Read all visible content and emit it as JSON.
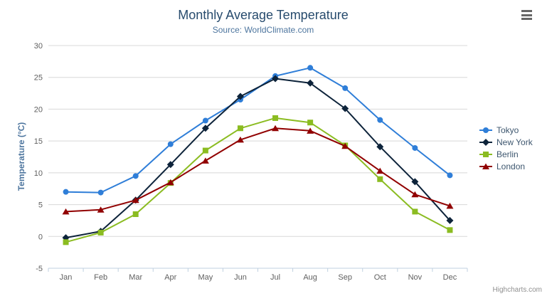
{
  "chart": {
    "title": "Monthly Average Temperature",
    "subtitle": "Source: WorldClimate.com",
    "credit": "Highcharts.com",
    "context_menu_icon": "hamburger-icon"
  },
  "colors": {
    "title_text": "#274b6d",
    "subtitle_text": "#4d759e",
    "axis_title_text": "#4d759e",
    "axis_label": "#606060",
    "grid_line": "#d8d8d8",
    "axis_line": "#c0d0e0",
    "legend_text": "#3e576f",
    "credit_text": "#909090",
    "menu_icon": "#666666"
  },
  "chart_data": {
    "type": "line",
    "title": "Monthly Average Temperature",
    "subtitle": "Source: WorldClimate.com",
    "xlabel": "",
    "ylabel": "Temperature (°C)",
    "ylim": [
      -5,
      30
    ],
    "yticks": [
      30,
      25,
      20,
      15,
      10,
      5,
      0,
      -5
    ],
    "grid": true,
    "legend_position": "right",
    "categories": [
      "Jan",
      "Feb",
      "Mar",
      "Apr",
      "May",
      "Jun",
      "Jul",
      "Aug",
      "Sep",
      "Oct",
      "Nov",
      "Dec"
    ],
    "series": [
      {
        "name": "Tokyo",
        "color": "#2f7ed8",
        "marker": "circle",
        "values": [
          7.0,
          6.9,
          9.5,
          14.5,
          18.2,
          21.5,
          25.2,
          26.5,
          23.3,
          18.3,
          13.9,
          9.6
        ]
      },
      {
        "name": "New York",
        "color": "#0d233a",
        "marker": "diamond",
        "values": [
          -0.2,
          0.8,
          5.7,
          11.3,
          17.0,
          22.0,
          24.8,
          24.1,
          20.1,
          14.1,
          8.6,
          2.5
        ]
      },
      {
        "name": "Berlin",
        "color": "#8bbc21",
        "marker": "square",
        "values": [
          -0.9,
          0.6,
          3.5,
          8.4,
          13.5,
          17.0,
          18.6,
          17.9,
          14.3,
          9.0,
          3.9,
          1.0
        ]
      },
      {
        "name": "London",
        "color": "#910000",
        "marker": "triangle",
        "values": [
          3.9,
          4.2,
          5.7,
          8.5,
          11.9,
          15.2,
          17.0,
          16.6,
          14.2,
          10.3,
          6.6,
          4.8
        ]
      }
    ]
  }
}
